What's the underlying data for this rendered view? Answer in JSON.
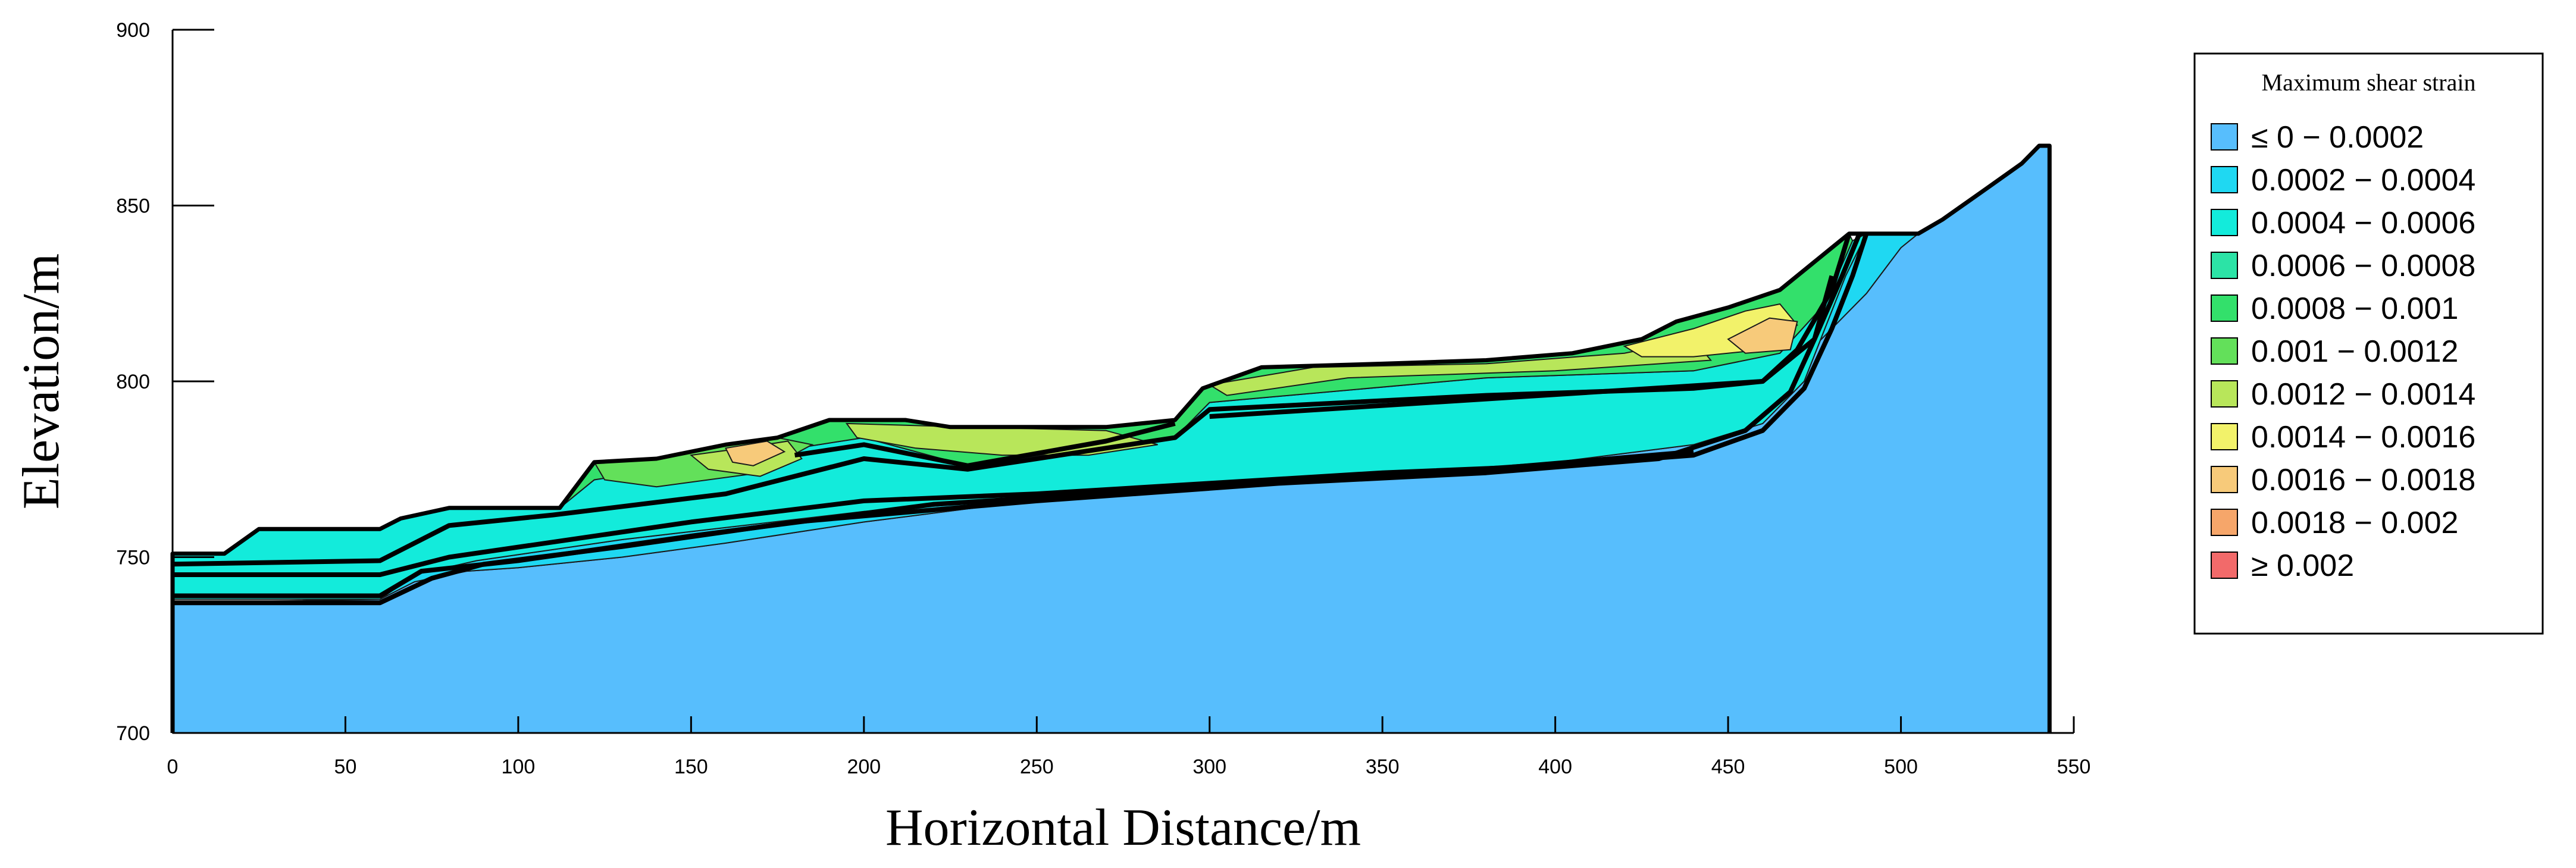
{
  "chart_data": {
    "type": "area",
    "title": "",
    "xlabel": "Horizontal Distance/m",
    "ylabel": "Elevation/m",
    "xlim": [
      0,
      550
    ],
    "ylim": [
      700,
      900
    ],
    "x_ticks": [
      0,
      50,
      100,
      150,
      200,
      250,
      300,
      350,
      400,
      450,
      500,
      550
    ],
    "y_ticks": [
      700,
      750,
      800,
      850,
      900
    ],
    "grid": false,
    "legend": {
      "title": "Maximum shear strain",
      "placement": "right",
      "entries": [
        {
          "label": "≤ 0 − 0.0002",
          "color": "#57BEFD"
        },
        {
          "label": "0.0002 − 0.0004",
          "color": "#1FD8F2"
        },
        {
          "label": "0.0004 − 0.0006",
          "color": "#13EBDB"
        },
        {
          "label": "0.0006 − 0.0008",
          "color": "#2CE3A6"
        },
        {
          "label": "0.0008 − 0.001",
          "color": "#33E06B"
        },
        {
          "label": "0.001 − 0.0012",
          "color": "#63E05A"
        },
        {
          "label": "0.0012 − 0.0014",
          "color": "#B8E65A"
        },
        {
          "label": "0.0014 − 0.0016",
          "color": "#F2F26A"
        },
        {
          "label": "0.0016 − 0.0018",
          "color": "#F7CA7A"
        },
        {
          "label": "0.0018 − 0.002",
          "color": "#F6A66A"
        },
        {
          "label": "≥ 0.002",
          "color": "#F26A6A"
        }
      ]
    },
    "surface_profile": [
      [
        0,
        751
      ],
      [
        15,
        751
      ],
      [
        25,
        758
      ],
      [
        60,
        758
      ],
      [
        66,
        761
      ],
      [
        80,
        764
      ],
      [
        112,
        764
      ],
      [
        122,
        777
      ],
      [
        140,
        778
      ],
      [
        160,
        782
      ],
      [
        175,
        784
      ],
      [
        190,
        789
      ],
      [
        212,
        789
      ],
      [
        225,
        787
      ],
      [
        270,
        787
      ],
      [
        290,
        789
      ],
      [
        298,
        798
      ],
      [
        315,
        804
      ],
      [
        350,
        805
      ],
      [
        380,
        806
      ],
      [
        405,
        808
      ],
      [
        425,
        812
      ],
      [
        435,
        817
      ],
      [
        450,
        821
      ],
      [
        465,
        826
      ],
      [
        480,
        838
      ],
      [
        485,
        842
      ],
      [
        505,
        842
      ],
      [
        512,
        846
      ],
      [
        525,
        855
      ],
      [
        535,
        862
      ],
      [
        540,
        867
      ],
      [
        543,
        867
      ]
    ],
    "zones": [
      {
        "strain_class": "≤ 0 − 0.0002",
        "points": [
          [
            0,
            700
          ],
          [
            543,
            700
          ],
          [
            543,
            867
          ],
          [
            540,
            867
          ],
          [
            535,
            862
          ],
          [
            525,
            855
          ],
          [
            512,
            846
          ],
          [
            505,
            842
          ],
          [
            500,
            838
          ],
          [
            490,
            825
          ],
          [
            475,
            810
          ],
          [
            455,
            795
          ],
          [
            430,
            787
          ],
          [
            400,
            781
          ],
          [
            360,
            777
          ],
          [
            320,
            773
          ],
          [
            280,
            768
          ],
          [
            240,
            765
          ],
          [
            200,
            760
          ],
          [
            160,
            754
          ],
          [
            130,
            750
          ],
          [
            100,
            747
          ],
          [
            85,
            746
          ],
          [
            70,
            743
          ],
          [
            60,
            738
          ],
          [
            0,
            737
          ]
        ]
      },
      {
        "strain_class": "0.0002 − 0.0004",
        "points": [
          [
            0,
            738
          ],
          [
            60,
            738
          ],
          [
            70,
            745
          ],
          [
            88,
            749
          ],
          [
            130,
            755
          ],
          [
            200,
            763
          ],
          [
            280,
            769
          ],
          [
            340,
            773
          ],
          [
            400,
            777
          ],
          [
            440,
            782
          ],
          [
            460,
            788
          ],
          [
            472,
            800
          ],
          [
            478,
            815
          ],
          [
            484,
            830
          ],
          [
            490,
            842
          ],
          [
            505,
            842
          ],
          [
            500,
            838
          ],
          [
            490,
            825
          ],
          [
            475,
            810
          ],
          [
            455,
            795
          ],
          [
            430,
            787
          ],
          [
            400,
            781
          ],
          [
            360,
            777
          ],
          [
            320,
            773
          ],
          [
            280,
            768
          ],
          [
            240,
            765
          ],
          [
            200,
            760
          ],
          [
            160,
            754
          ],
          [
            130,
            750
          ],
          [
            100,
            747
          ],
          [
            85,
            746
          ],
          [
            70,
            743
          ],
          [
            60,
            738
          ]
        ]
      },
      {
        "strain_class": "0.0004 − 0.0006",
        "points": [
          [
            0,
            738
          ],
          [
            0,
            751
          ],
          [
            15,
            751
          ],
          [
            25,
            758
          ],
          [
            60,
            758
          ],
          [
            66,
            761
          ],
          [
            80,
            764
          ],
          [
            112,
            764
          ],
          [
            122,
            772
          ],
          [
            200,
            784
          ],
          [
            230,
            776
          ],
          [
            290,
            784
          ],
          [
            300,
            794
          ],
          [
            380,
            801
          ],
          [
            440,
            803
          ],
          [
            465,
            808
          ],
          [
            478,
            822
          ],
          [
            486,
            840
          ],
          [
            490,
            842
          ],
          [
            484,
            830
          ],
          [
            478,
            815
          ],
          [
            472,
            800
          ],
          [
            460,
            788
          ],
          [
            440,
            782
          ],
          [
            400,
            777
          ],
          [
            340,
            773
          ],
          [
            280,
            769
          ],
          [
            200,
            763
          ],
          [
            130,
            755
          ],
          [
            88,
            749
          ],
          [
            70,
            745
          ],
          [
            60,
            738
          ]
        ]
      },
      {
        "strain_class": "0.0008 − 0.001",
        "points": [
          [
            112,
            764
          ],
          [
            122,
            777
          ],
          [
            140,
            778
          ],
          [
            160,
            782
          ],
          [
            175,
            784
          ],
          [
            190,
            789
          ],
          [
            212,
            789
          ],
          [
            225,
            787
          ],
          [
            270,
            787
          ],
          [
            290,
            789
          ],
          [
            298,
            798
          ],
          [
            315,
            804
          ],
          [
            350,
            805
          ],
          [
            380,
            806
          ],
          [
            405,
            808
          ],
          [
            425,
            812
          ],
          [
            435,
            817
          ],
          [
            450,
            821
          ],
          [
            465,
            826
          ],
          [
            480,
            838
          ],
          [
            485,
            842
          ],
          [
            486,
            840
          ],
          [
            478,
            822
          ],
          [
            465,
            808
          ],
          [
            440,
            803
          ],
          [
            380,
            801
          ],
          [
            300,
            794
          ],
          [
            290,
            784
          ],
          [
            230,
            776
          ],
          [
            200,
            784
          ],
          [
            122,
            772
          ]
        ]
      },
      {
        "strain_class": "0.001 − 0.0012",
        "points": [
          [
            122,
            777
          ],
          [
            140,
            778
          ],
          [
            160,
            782
          ],
          [
            175,
            784
          ],
          [
            185,
            782
          ],
          [
            170,
            774
          ],
          [
            140,
            770
          ],
          [
            125,
            772
          ]
        ]
      },
      {
        "strain_class": "0.0012 − 0.0014",
        "points": [
          [
            150,
            779
          ],
          [
            165,
            781
          ],
          [
            178,
            783
          ],
          [
            182,
            778
          ],
          [
            170,
            773
          ],
          [
            155,
            775
          ]
        ]
      },
      {
        "strain_class": "0.0016 − 0.0018",
        "points": [
          [
            160,
            781
          ],
          [
            172,
            783
          ],
          [
            177,
            780
          ],
          [
            168,
            776
          ],
          [
            162,
            777
          ]
        ]
      },
      {
        "strain_class": "0.0012 − 0.0014",
        "points": [
          [
            195,
            788
          ],
          [
            230,
            787
          ],
          [
            270,
            786
          ],
          [
            285,
            782
          ],
          [
            265,
            779
          ],
          [
            240,
            779
          ],
          [
            215,
            781
          ],
          [
            198,
            784
          ]
        ]
      },
      {
        "strain_class": "0.0012 − 0.0014",
        "points": [
          [
            300,
            799
          ],
          [
            330,
            804
          ],
          [
            380,
            805
          ],
          [
            420,
            808
          ],
          [
            440,
            812
          ],
          [
            445,
            806
          ],
          [
            400,
            803
          ],
          [
            340,
            801
          ],
          [
            305,
            796
          ]
        ]
      },
      {
        "strain_class": "0.0014 − 0.0016",
        "points": [
          [
            420,
            810
          ],
          [
            440,
            815
          ],
          [
            455,
            820
          ],
          [
            465,
            822
          ],
          [
            470,
            816
          ],
          [
            460,
            809
          ],
          [
            440,
            807
          ],
          [
            425,
            807
          ]
        ]
      },
      {
        "strain_class": "0.0016 − 0.0018",
        "points": [
          [
            450,
            812
          ],
          [
            462,
            818
          ],
          [
            470,
            817
          ],
          [
            468,
            809
          ],
          [
            455,
            808
          ]
        ]
      }
    ],
    "layer_boundaries": [
      [
        [
          0,
          745
        ],
        [
          60,
          745
        ],
        [
          80,
          750
        ],
        [
          150,
          760
        ],
        [
          200,
          766
        ],
        [
          250,
          768
        ],
        [
          300,
          771
        ],
        [
          350,
          774
        ],
        [
          400,
          776
        ],
        [
          440,
          779
        ],
        [
          460,
          786
        ],
        [
          472,
          798
        ],
        [
          480,
          815
        ],
        [
          486,
          830
        ],
        [
          490,
          842
        ]
      ],
      [
        [
          0,
          737
        ],
        [
          60,
          737
        ],
        [
          75,
          744
        ],
        [
          90,
          748
        ],
        [
          130,
          753
        ],
        [
          180,
          760
        ],
        [
          250,
          766
        ],
        [
          320,
          771
        ],
        [
          380,
          774
        ],
        [
          430,
          778
        ],
        [
          455,
          786
        ],
        [
          468,
          797
        ],
        [
          475,
          812
        ],
        [
          483,
          830
        ],
        [
          488,
          842
        ]
      ],
      [
        [
          0,
          739
        ],
        [
          60,
          739
        ],
        [
          72,
          746
        ],
        [
          100,
          749
        ],
        [
          150,
          756
        ],
        [
          220,
          765
        ],
        [
          300,
          770
        ],
        [
          380,
          775
        ],
        [
          440,
          780
        ]
      ],
      [
        [
          0,
          748
        ],
        [
          60,
          749
        ],
        [
          80,
          759
        ],
        [
          110,
          762
        ],
        [
          160,
          768
        ],
        [
          200,
          778
        ],
        [
          230,
          775
        ],
        [
          270,
          781
        ],
        [
          290,
          784
        ],
        [
          300,
          792
        ],
        [
          380,
          796
        ],
        [
          440,
          798
        ],
        [
          460,
          800
        ],
        [
          470,
          809
        ],
        [
          480,
          826
        ],
        [
          485,
          842
        ]
      ],
      [
        [
          180,
          779
        ],
        [
          200,
          782
        ],
        [
          230,
          776
        ],
        [
          270,
          783
        ],
        [
          290,
          788
        ]
      ],
      [
        [
          300,
          790
        ],
        [
          380,
          795
        ],
        [
          460,
          800
        ],
        [
          475,
          812
        ],
        [
          480,
          830
        ]
      ]
    ]
  }
}
